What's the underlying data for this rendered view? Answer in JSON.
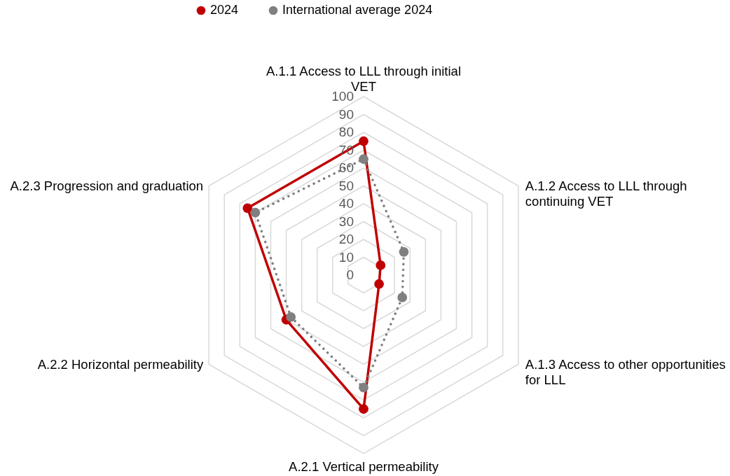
{
  "chart_data": {
    "type": "radar",
    "categories": [
      "A.1.1 Access to LLL through initial VET",
      "A.1.2 Access to LLL through continuing VET",
      "A.1.3 Access to other opportunities for LLL",
      "A.2.1 Vertical permeability",
      "A.2.2 Horizontal permeability",
      "A.2.3 Progression and graduation"
    ],
    "series": [
      {
        "name": "2024",
        "color": "#c00000",
        "line_style": "solid",
        "values": [
          75,
          11,
          10,
          75,
          50,
          75
        ]
      },
      {
        "name": "International average 2024",
        "color": "#808080",
        "line_style": "dotted",
        "values": [
          65,
          26,
          25,
          63,
          47,
          70
        ]
      }
    ],
    "ylim": [
      0,
      100
    ],
    "yticks": [
      0,
      10,
      20,
      30,
      40,
      50,
      60,
      70,
      80,
      90,
      100
    ],
    "grid": true,
    "legend": "top",
    "marker": "circle"
  }
}
